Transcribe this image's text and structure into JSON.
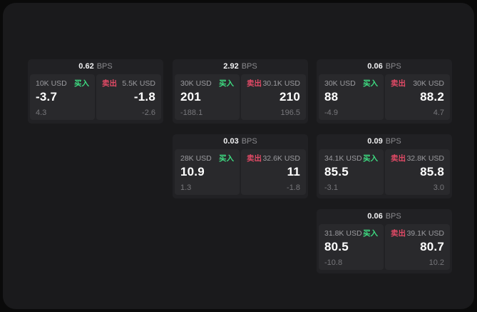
{
  "theme": {
    "outer_background": "#0a0a0a",
    "window_background": "#1a1a1c",
    "card_background": "#212124",
    "panel_background": "#29292c",
    "buy_color": "#3edd82",
    "sell_color": "#e24a66",
    "primary_text": "#ffffff",
    "muted_text": "#9b9b9f",
    "dim_text": "#77777b"
  },
  "labels": {
    "bps_unit": "BPS",
    "buy": "买入",
    "sell": "卖出"
  },
  "cards": [
    {
      "bps_value": "0.62",
      "bps_unit": "BPS",
      "buy": {
        "amount": "10K USD",
        "side_label": "买入",
        "price": "-3.7",
        "delta": "4.3"
      },
      "sell": {
        "side_label": "卖出",
        "amount": "5.5K USD",
        "price": "-1.8",
        "delta": "-2.6"
      }
    },
    {
      "bps_value": "2.92",
      "bps_unit": "BPS",
      "buy": {
        "amount": "30K USD",
        "side_label": "买入",
        "price": "201",
        "delta": "-188.1"
      },
      "sell": {
        "side_label": "卖出",
        "amount": "30.1K USD",
        "price": "210",
        "delta": "196.5"
      }
    },
    {
      "bps_value": "0.06",
      "bps_unit": "BPS",
      "buy": {
        "amount": "30K USD",
        "side_label": "买入",
        "price": "88",
        "delta": "-4.9"
      },
      "sell": {
        "side_label": "卖出",
        "amount": "30K USD",
        "price": "88.2",
        "delta": "4.7"
      }
    },
    {
      "bps_value": "0.03",
      "bps_unit": "BPS",
      "buy": {
        "amount": "28K USD",
        "side_label": "买入",
        "price": "10.9",
        "delta": "1.3"
      },
      "sell": {
        "side_label": "卖出",
        "amount": "32.6K USD",
        "price": "11",
        "delta": "-1.8"
      }
    },
    {
      "bps_value": "0.09",
      "bps_unit": "BPS",
      "buy": {
        "amount": "34.1K USD",
        "side_label": "买入",
        "price": "85.5",
        "delta": "-3.1"
      },
      "sell": {
        "side_label": "卖出",
        "amount": "32.8K USD",
        "price": "85.8",
        "delta": "3.0"
      }
    },
    {
      "bps_value": "0.06",
      "bps_unit": "BPS",
      "buy": {
        "amount": "31.8K USD",
        "side_label": "买入",
        "price": "80.5",
        "delta": "-10.8"
      },
      "sell": {
        "side_label": "卖出",
        "amount": "39.1K USD",
        "price": "80.7",
        "delta": "10.2"
      }
    }
  ]
}
